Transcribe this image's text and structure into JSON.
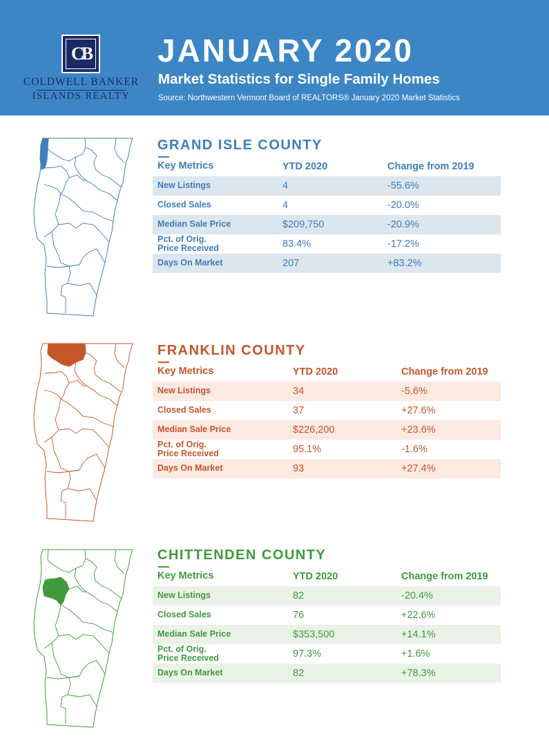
{
  "header": {
    "title": "JANUARY 2020",
    "subtitle": "Market Statistics for Single Family Homes",
    "source": "Source: Northwestern Vermont Board of REALTORS® January 2020 Market Statistics",
    "brand_line1": "COLDWELL BANKER",
    "brand_line2": "ISLANDS REALTY",
    "logo_monogram": "CB",
    "background_color": "#3c86c6",
    "logo_color": "#1c2a63"
  },
  "counties": [
    {
      "name": "GRAND ISLE COUNTY",
      "color": "#3f7dbc",
      "stripe_color": "#dbe6ee",
      "columns": [
        "Key Metrics",
        "YTD 2020",
        "Change from 2019"
      ],
      "rows": [
        {
          "metric": "New Listings",
          "ytd": "4",
          "change": "-55.6%"
        },
        {
          "metric": "Closed Sales",
          "ytd": "4",
          "change": "-20.0%"
        },
        {
          "metric": "Median Sale Price",
          "ytd": "$209,750",
          "change": "-20.9%"
        },
        {
          "metric": "Pct. of Orig.\nPrice Received",
          "ytd": "83.4%",
          "change": "-17.2%"
        },
        {
          "metric": "Days On Market",
          "ytd": "207",
          "change": "+83.2%"
        }
      ]
    },
    {
      "name": "FRANKLIN COUNTY",
      "color": "#c4562a",
      "stripe_color": "#fbe9e2",
      "columns": [
        "Key Metrics",
        "YTD 2020",
        "Change from 2019"
      ],
      "rows": [
        {
          "metric": "New Listings",
          "ytd": "34",
          "change": "-5.6%"
        },
        {
          "metric": "Closed Sales",
          "ytd": "37",
          "change": "+27.6%"
        },
        {
          "metric": "Median Sale Price",
          "ytd": "$226,200",
          "change": "+23.6%"
        },
        {
          "metric": "Pct. of Orig.\nPrice Received",
          "ytd": "95.1%",
          "change": "-1.6%"
        },
        {
          "metric": "Days On Market",
          "ytd": "93",
          "change": "+27.4%"
        }
      ]
    },
    {
      "name": "CHITTENDEN COUNTY",
      "color": "#3e9a3a",
      "stripe_color": "#eaf2e8",
      "columns": [
        "Key Metrics",
        "YTD 2020",
        "Change from 2019"
      ],
      "rows": [
        {
          "metric": "New Listings",
          "ytd": "82",
          "change": "-20.4%"
        },
        {
          "metric": "Closed Sales",
          "ytd": "76",
          "change": "+22.6%"
        },
        {
          "metric": "Median Sale Price",
          "ytd": "$353,500",
          "change": "+14.1%"
        },
        {
          "metric": "Pct. of Orig.\nPrice Received",
          "ytd": "97.3%",
          "change": "+1.6%"
        },
        {
          "metric": "Days On Market",
          "ytd": "82",
          "change": "+78.3%"
        }
      ]
    }
  ]
}
